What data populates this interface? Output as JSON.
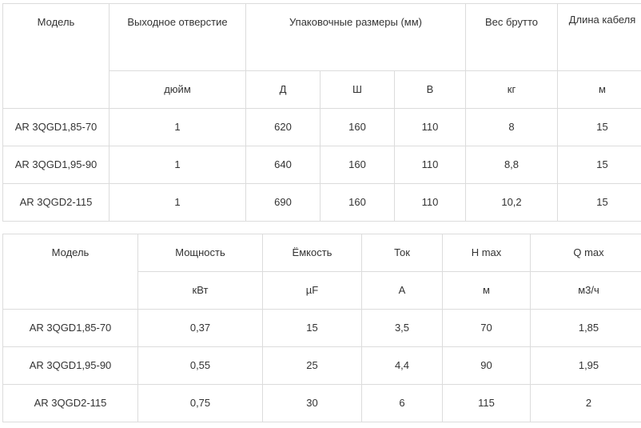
{
  "table1": {
    "headers": {
      "model": "Модель",
      "outlet": "Выходное отверстие",
      "pack": "Упаковочные размеры (мм)",
      "weight": "Вес  брутто",
      "cable": "Длина кабеля"
    },
    "units": {
      "outlet": "дюйм",
      "d": "Д",
      "w": "Ш",
      "h": "В",
      "weight": "кг",
      "cable": "м"
    },
    "rows": [
      [
        "AR 3QGD1,85-70",
        "1",
        "620",
        "160",
        "110",
        "8",
        "15"
      ],
      [
        "AR 3QGD1,95-90",
        "1",
        "640",
        "160",
        "110",
        "8,8",
        "15"
      ],
      [
        "AR 3QGD2-115",
        "1",
        "690",
        "160",
        "110",
        "10,2",
        "15"
      ]
    ]
  },
  "table2": {
    "headers": {
      "model": "Модель",
      "power": "Мощность",
      "capacity": "Ёмкость",
      "current": "Ток",
      "hmax": "H max",
      "qmax": "Q max"
    },
    "units": {
      "power": "кВт",
      "capacity": "µF",
      "current": "А",
      "hmax": "м",
      "qmax": "м3/ч"
    },
    "rows": [
      [
        "AR 3QGD1,85-70",
        "0,37",
        "15",
        "3,5",
        "70",
        "1,85"
      ],
      [
        "AR 3QGD1,95-90",
        "0,55",
        "25",
        "4,4",
        "90",
        "1,95"
      ],
      [
        "AR 3QGD2-115",
        "0,75",
        "30",
        "6",
        "115",
        "2"
      ]
    ]
  }
}
